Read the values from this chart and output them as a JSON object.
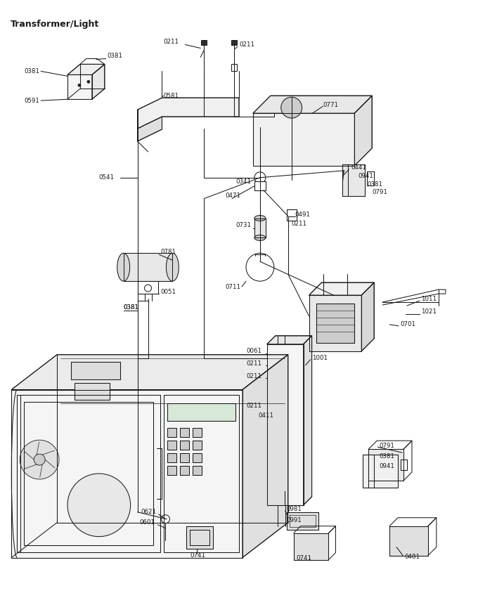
{
  "title": "Transformer/Light",
  "bg_color": "#ffffff",
  "line_color": "#1a1a1a",
  "fig_width": 6.8,
  "fig_height": 8.71,
  "dpi": 100,
  "title_fontsize": 9,
  "label_fontsize": 6.2,
  "lw": 0.75
}
